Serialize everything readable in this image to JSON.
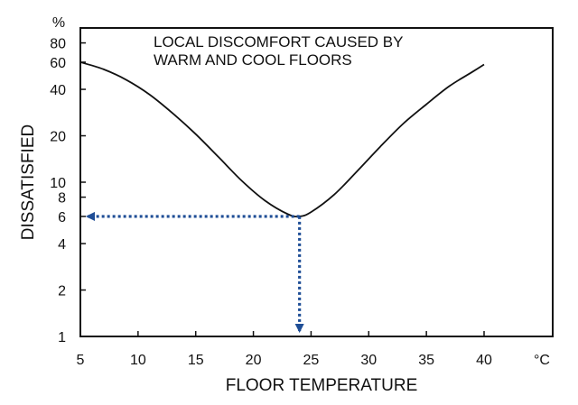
{
  "chart_data": {
    "type": "line",
    "title_lines": [
      "LOCAL  DISCOMFORT  CAUSED  BY",
      "WARM  AND  COOL  FLOORS"
    ],
    "xlabel": "FLOOR  TEMPERATURE",
    "ylabel": "DISSATISFIED",
    "x_unit": "°C",
    "y_unit": "%",
    "xlim": [
      5,
      45
    ],
    "ylim": [
      1,
      100
    ],
    "y_scale": "log",
    "x_ticks": [
      5,
      10,
      15,
      20,
      25,
      30,
      35,
      40
    ],
    "x_tick_labels": [
      "5",
      "10",
      "15",
      "20",
      "25",
      "30",
      "35",
      "40"
    ],
    "y_ticks": [
      1,
      2,
      4,
      6,
      8,
      10,
      20,
      40,
      60,
      80
    ],
    "y_tick_labels": [
      "1",
      "2",
      "4",
      "6",
      "8",
      "10",
      "20",
      "40",
      "60",
      "80"
    ],
    "grid": false,
    "series": [
      {
        "x": [
          5,
          7,
          9,
          11,
          13,
          15,
          17,
          19,
          21,
          23,
          24,
          25,
          27,
          29,
          31,
          33,
          35,
          37,
          39,
          40
        ],
        "values": [
          60,
          54,
          46,
          37,
          28,
          20.5,
          14.5,
          10.2,
          7.6,
          6.2,
          6.0,
          6.4,
          8.3,
          11.8,
          17,
          24,
          32,
          42,
          52,
          58
        ]
      }
    ],
    "annotation": {
      "x": 24,
      "y": 6,
      "style": "dotted arrows from the curve minimum to the x and y axes",
      "color": "#1f4e96"
    },
    "colors": {
      "line": "#111111",
      "frame": "#111111",
      "annotation": "#1f4e96"
    }
  }
}
